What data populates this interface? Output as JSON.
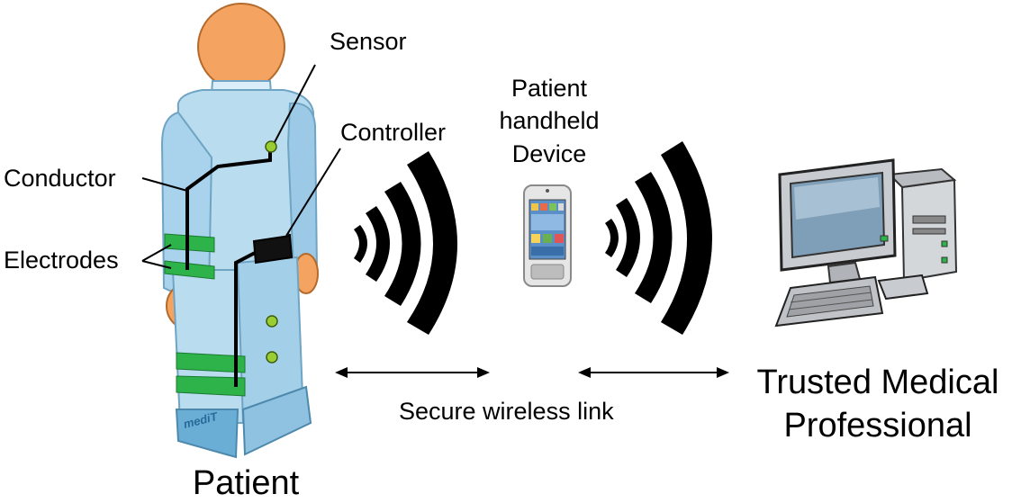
{
  "labels": {
    "sensor": "Sensor",
    "controller": "Controller",
    "conductor": "Conductor",
    "electrodes": "Electrodes",
    "patient": "Patient",
    "device_line1": "Patient",
    "device_line2": "handheld",
    "device_line3": "Device",
    "link": "Secure wireless  link",
    "professional_line1": "Trusted Medical",
    "professional_line2": "Professional"
  },
  "logo_text": "mediT",
  "colors": {
    "suit": "#b9dcef",
    "suit_shadow": "#8fc2e0",
    "skin": "#f4a460",
    "electrode": "#2db34a",
    "sensor_dot": "#9acd32",
    "wave": "#000000",
    "monitor": "#c8ccd0",
    "screen": "#7f9fb8"
  }
}
